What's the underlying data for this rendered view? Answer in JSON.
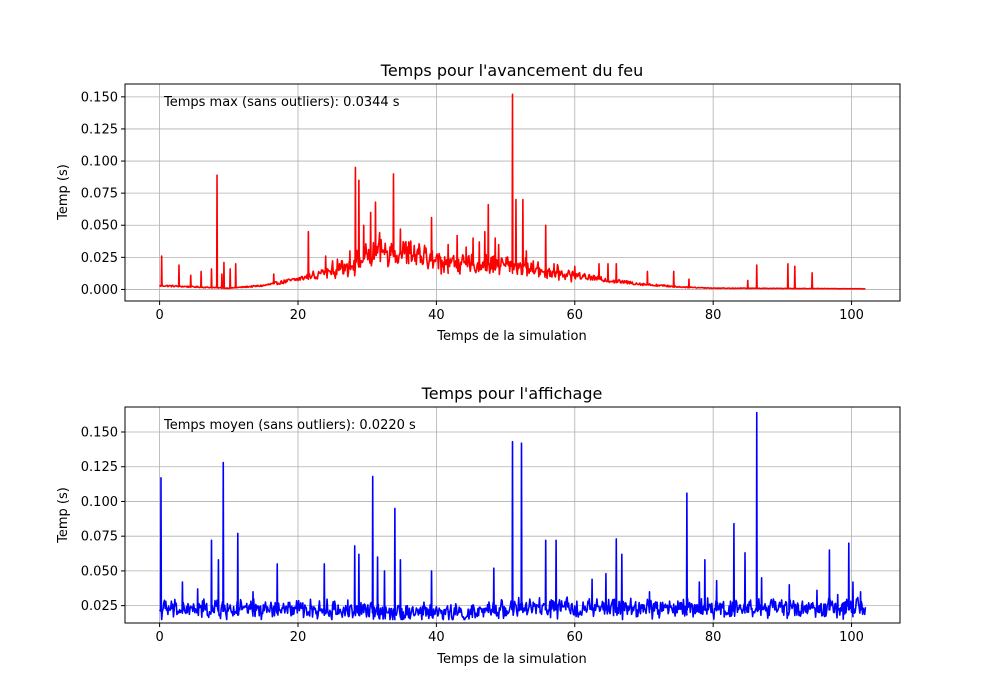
{
  "chart_data": [
    {
      "type": "line",
      "title": "Temps pour l'avancement du feu",
      "xlabel": "Temps de la simulation",
      "ylabel": "Temp (s)",
      "annotation": "Temps max (sans outliers): 0.0344 s",
      "xlim": [
        -5,
        107
      ],
      "ylim": [
        -0.009,
        0.16
      ],
      "xticks": [
        0,
        20,
        40,
        60,
        80,
        100
      ],
      "yticks": [
        0.0,
        0.025,
        0.05,
        0.075,
        0.1,
        0.125,
        0.15
      ],
      "ytick_labels": [
        "0.000",
        "0.025",
        "0.050",
        "0.075",
        "0.100",
        "0.125",
        "0.150"
      ],
      "grid": true,
      "series": [
        {
          "color": "#ff0000",
          "base": [
            [
              0,
              0.003
            ],
            [
              10,
              0.001
            ],
            [
              15,
              0.003
            ],
            [
              20,
              0.008
            ],
            [
              25,
              0.015
            ],
            [
              28,
              0.02
            ],
            [
              32,
              0.03
            ],
            [
              36,
              0.028
            ],
            [
              40,
              0.022
            ],
            [
              45,
              0.019
            ],
            [
              50,
              0.02
            ],
            [
              55,
              0.015
            ],
            [
              60,
              0.011
            ],
            [
              65,
              0.007
            ],
            [
              70,
              0.004
            ],
            [
              75,
              0.002
            ],
            [
              80,
              0.001
            ],
            [
              90,
              0.0008
            ],
            [
              102,
              0.0005
            ]
          ],
          "spikes": [
            [
              0.3,
              0.026
            ],
            [
              2.8,
              0.019
            ],
            [
              4.5,
              0.011
            ],
            [
              6,
              0.014
            ],
            [
              7.5,
              0.016
            ],
            [
              8.3,
              0.089
            ],
            [
              9,
              0.012
            ],
            [
              9.3,
              0.021
            ],
            [
              10.2,
              0.016
            ],
            [
              11,
              0.02
            ],
            [
              16.5,
              0.012
            ],
            [
              21.5,
              0.045
            ],
            [
              24,
              0.026
            ],
            [
              26,
              0.02
            ],
            [
              27.5,
              0.03
            ],
            [
              28.3,
              0.095
            ],
            [
              28.8,
              0.085
            ],
            [
              29.5,
              0.05
            ],
            [
              30.5,
              0.06
            ],
            [
              31.2,
              0.068
            ],
            [
              33.8,
              0.09
            ],
            [
              34.8,
              0.047
            ],
            [
              36,
              0.037
            ],
            [
              39.3,
              0.056
            ],
            [
              41.7,
              0.035
            ],
            [
              43,
              0.042
            ],
            [
              44.3,
              0.033
            ],
            [
              45.3,
              0.04
            ],
            [
              46.2,
              0.037
            ],
            [
              47,
              0.045
            ],
            [
              47.5,
              0.066
            ],
            [
              48.5,
              0.04
            ],
            [
              49,
              0.035
            ],
            [
              51,
              0.152
            ],
            [
              51.5,
              0.07
            ],
            [
              52.5,
              0.07
            ],
            [
              53,
              0.03
            ],
            [
              55.8,
              0.05
            ],
            [
              57,
              0.02
            ],
            [
              60,
              0.018
            ],
            [
              63.5,
              0.02
            ],
            [
              64.8,
              0.02
            ],
            [
              66,
              0.02
            ],
            [
              70.5,
              0.014
            ],
            [
              74.3,
              0.014
            ],
            [
              76.5,
              0.008
            ],
            [
              85,
              0.007
            ],
            [
              86.3,
              0.019
            ],
            [
              90.8,
              0.02
            ],
            [
              91.8,
              0.018
            ],
            [
              94.3,
              0.013
            ]
          ]
        }
      ]
    },
    {
      "type": "line",
      "title": "Temps pour l'affichage",
      "xlabel": "Temps de la simulation",
      "ylabel": "Temp (s)",
      "annotation": "Temps moyen (sans outliers): 0.0220 s",
      "xlim": [
        -5,
        107
      ],
      "ylim": [
        0.0125,
        0.168
      ],
      "xticks": [
        0,
        20,
        40,
        60,
        80,
        100
      ],
      "yticks": [
        0.025,
        0.05,
        0.075,
        0.1,
        0.125,
        0.15
      ],
      "ytick_labels": [
        "0.025",
        "0.050",
        "0.075",
        "0.100",
        "0.125",
        "0.150"
      ],
      "grid": true,
      "series": [
        {
          "color": "#0000ff",
          "base": [
            [
              0,
              0.021
            ],
            [
              20,
              0.021
            ],
            [
              40,
              0.019
            ],
            [
              45,
              0.018
            ],
            [
              50,
              0.022
            ],
            [
              60,
              0.022
            ],
            [
              80,
              0.022
            ],
            [
              102,
              0.022
            ]
          ],
          "spikes": [
            [
              0.2,
              0.117
            ],
            [
              3.3,
              0.042
            ],
            [
              5.5,
              0.037
            ],
            [
              7.5,
              0.072
            ],
            [
              8.5,
              0.058
            ],
            [
              9.2,
              0.128
            ],
            [
              11.3,
              0.077
            ],
            [
              13.5,
              0.035
            ],
            [
              17,
              0.055
            ],
            [
              23.8,
              0.055
            ],
            [
              27.2,
              0.029
            ],
            [
              28.2,
              0.068
            ],
            [
              28.8,
              0.062
            ],
            [
              30.8,
              0.118
            ],
            [
              31.5,
              0.06
            ],
            [
              32.5,
              0.05
            ],
            [
              34,
              0.095
            ],
            [
              34.8,
              0.058
            ],
            [
              39.3,
              0.05
            ],
            [
              48.3,
              0.052
            ],
            [
              51,
              0.143
            ],
            [
              52.3,
              0.142
            ],
            [
              55.8,
              0.072
            ],
            [
              57.3,
              0.072
            ],
            [
              62.5,
              0.044
            ],
            [
              64.5,
              0.048
            ],
            [
              66,
              0.073
            ],
            [
              66.8,
              0.062
            ],
            [
              70.8,
              0.035
            ],
            [
              76.2,
              0.106
            ],
            [
              78,
              0.042
            ],
            [
              78.8,
              0.058
            ],
            [
              80.5,
              0.043
            ],
            [
              83,
              0.084
            ],
            [
              84.6,
              0.063
            ],
            [
              86.3,
              0.164
            ],
            [
              87,
              0.045
            ],
            [
              91,
              0.04
            ],
            [
              95,
              0.036
            ],
            [
              96.8,
              0.065
            ],
            [
              98,
              0.033
            ],
            [
              99.6,
              0.07
            ],
            [
              100.2,
              0.042
            ],
            [
              101.3,
              0.035
            ]
          ]
        }
      ]
    }
  ]
}
